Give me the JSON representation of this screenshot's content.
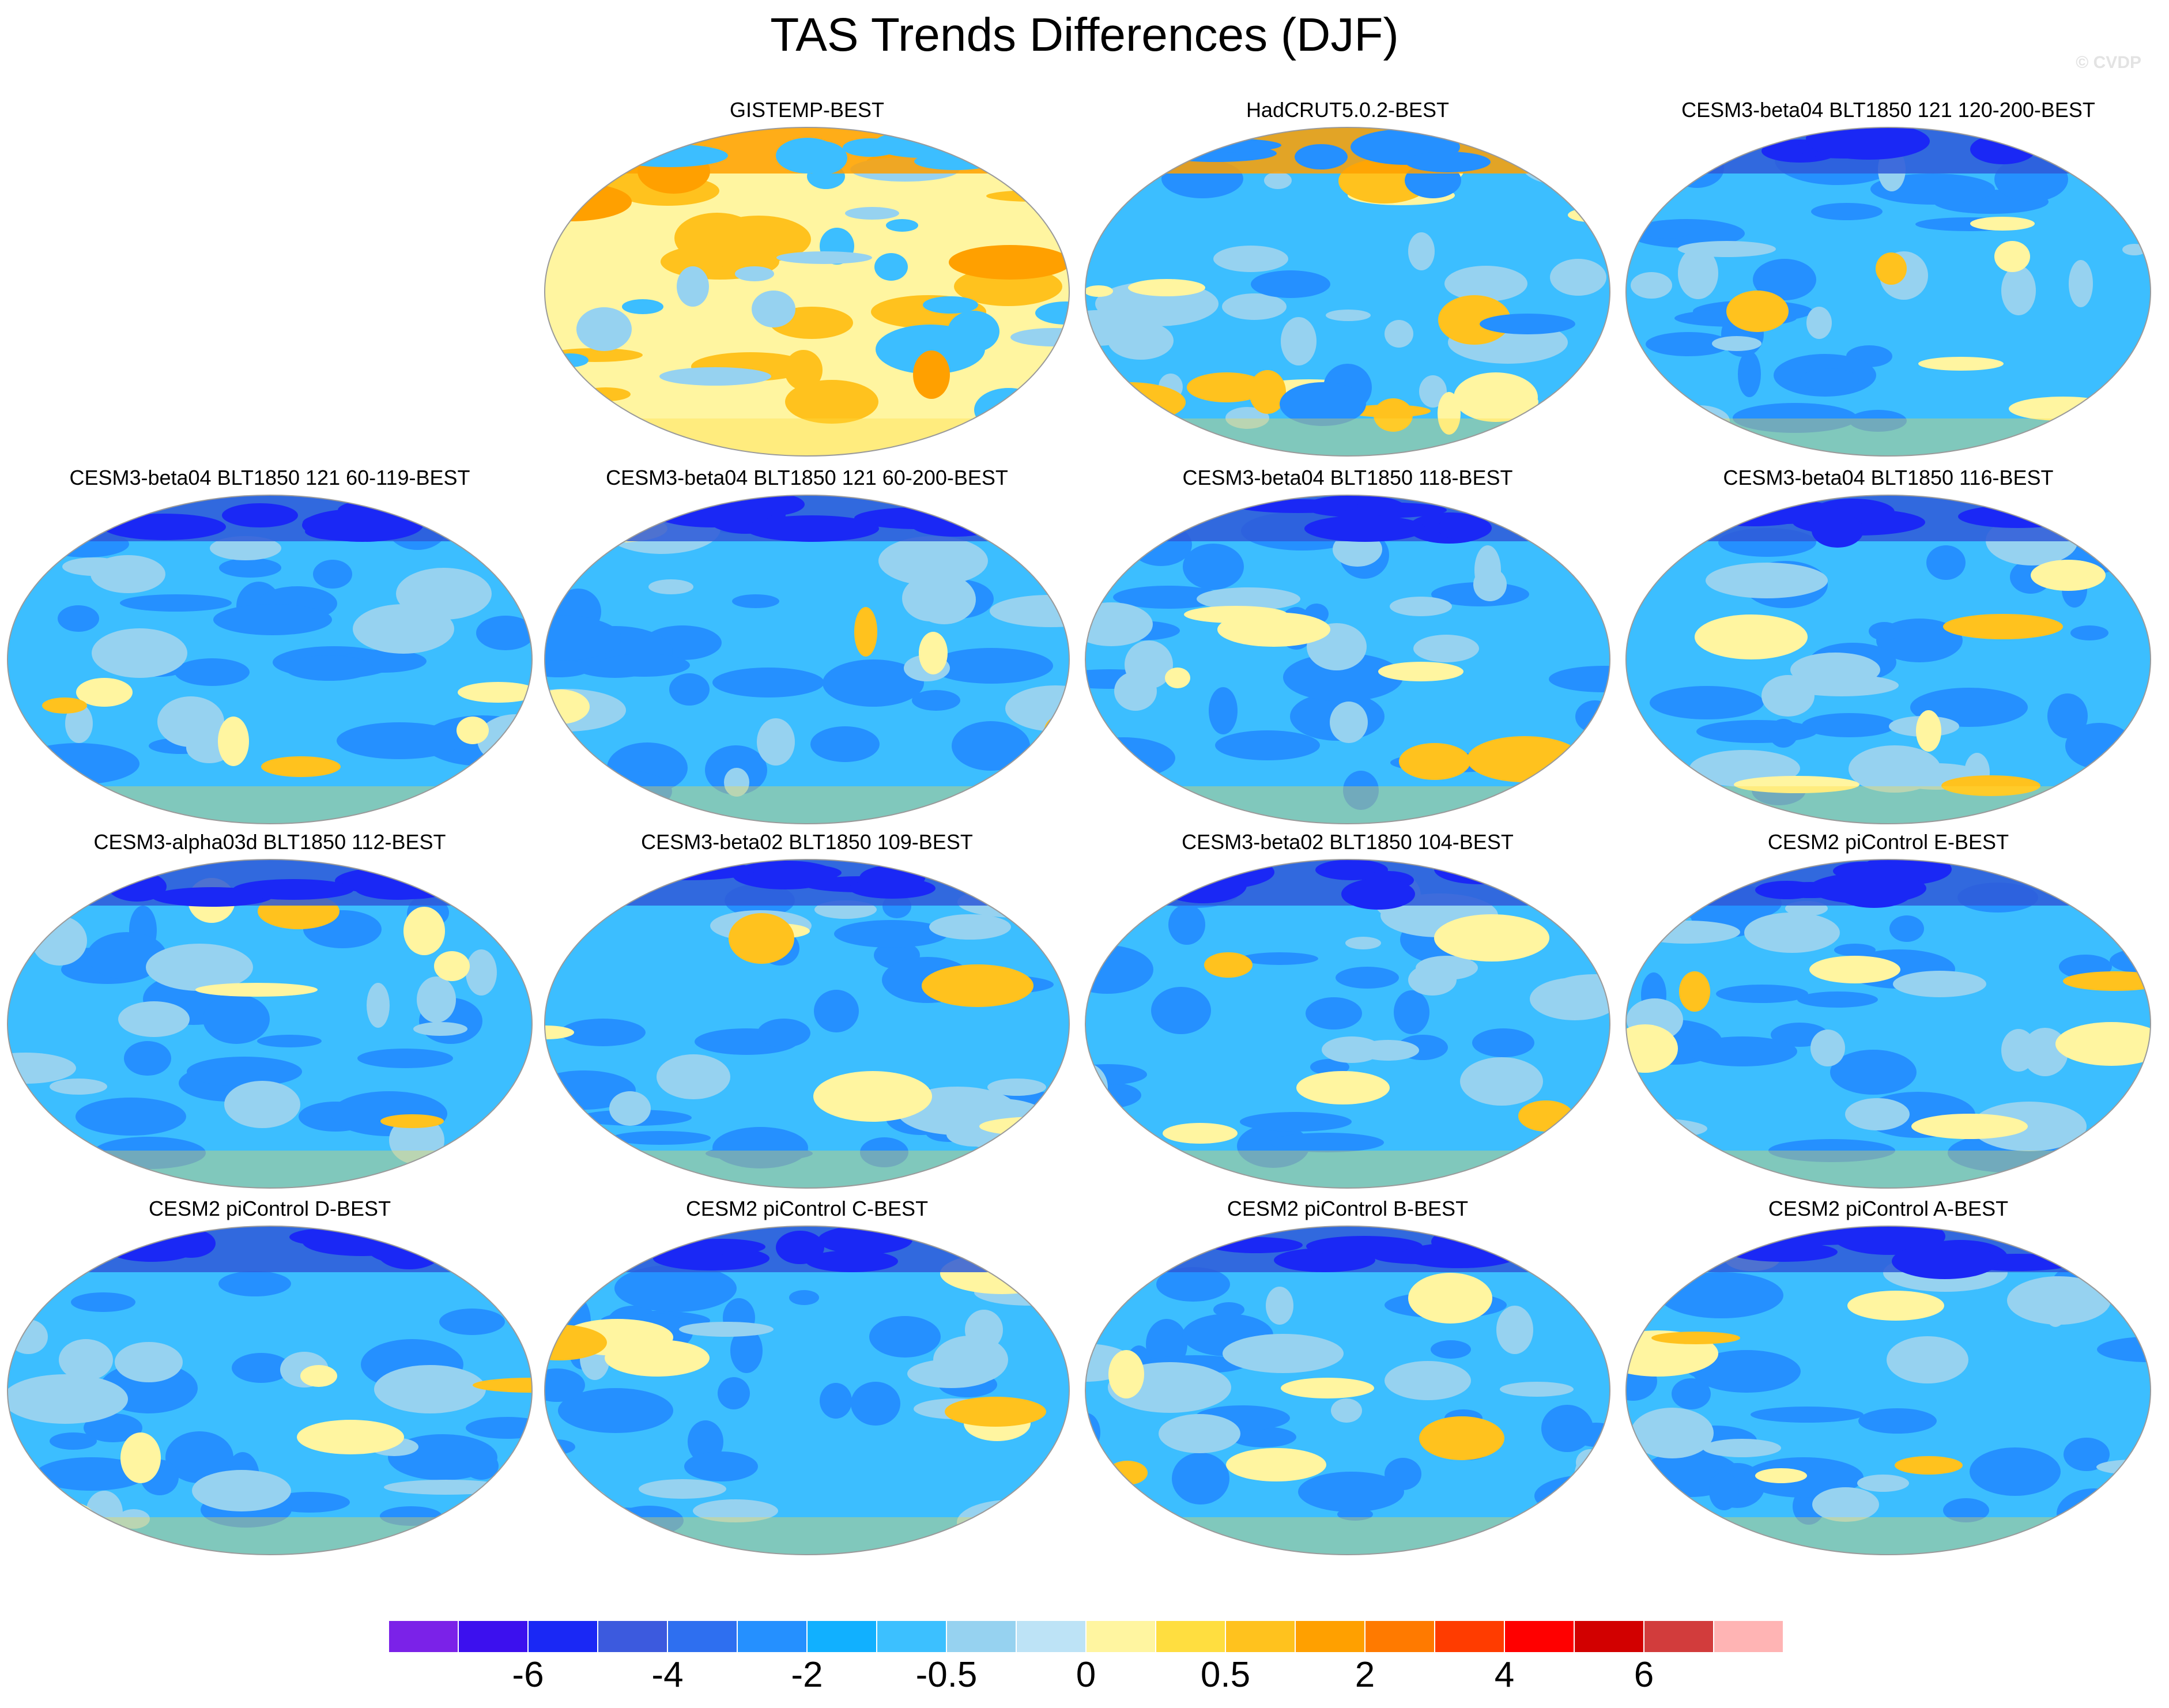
{
  "title": "TAS Trends Differences (DJF)",
  "watermark": "© CVDP",
  "panels": [
    {
      "title": "GISTEMP-BEST",
      "scheme": "warm"
    },
    {
      "title": "HadCRUT5.0.2-BEST",
      "scheme": "mixed"
    },
    {
      "title": "CESM3-beta04 BLT1850 121 120-200-BEST",
      "scheme": "cool"
    },
    {
      "title": "CESM3-beta04 BLT1850 121 60-119-BEST",
      "scheme": "cool"
    },
    {
      "title": "CESM3-beta04 BLT1850 121 60-200-BEST",
      "scheme": "cool"
    },
    {
      "title": "CESM3-beta04 BLT1850 118-BEST",
      "scheme": "cool"
    },
    {
      "title": "CESM3-beta04 BLT1850 116-BEST",
      "scheme": "cool"
    },
    {
      "title": "CESM3-alpha03d BLT1850 112-BEST",
      "scheme": "cool"
    },
    {
      "title": "CESM3-beta02 BLT1850 109-BEST",
      "scheme": "cool"
    },
    {
      "title": "CESM3-beta02 BLT1850 104-BEST",
      "scheme": "cool"
    },
    {
      "title": "CESM2 piControl E-BEST",
      "scheme": "cool"
    },
    {
      "title": "CESM2 piControl D-BEST",
      "scheme": "cool"
    },
    {
      "title": "CESM2 piControl C-BEST",
      "scheme": "cool"
    },
    {
      "title": "CESM2 piControl B-BEST",
      "scheme": "cool"
    },
    {
      "title": "CESM2 piControl A-BEST",
      "scheme": "cool"
    }
  ],
  "colorbar": {
    "colors": [
      "#7b22e8",
      "#3c10ee",
      "#1a28f5",
      "#3c5ade",
      "#2e6ff0",
      "#2590ff",
      "#11b0ff",
      "#3cc0ff",
      "#96d2f0",
      "#bde3f6",
      "#fff5a0",
      "#ffde40",
      "#ffc21e",
      "#ffa000",
      "#ff7a00",
      "#ff3c00",
      "#ff0000",
      "#d20000",
      "#d23c3c",
      "#ffb4b4"
    ],
    "labels": [
      "-6",
      "-4",
      "-2",
      "-0.5",
      "0",
      "0.5",
      "2",
      "4",
      "6"
    ]
  }
}
